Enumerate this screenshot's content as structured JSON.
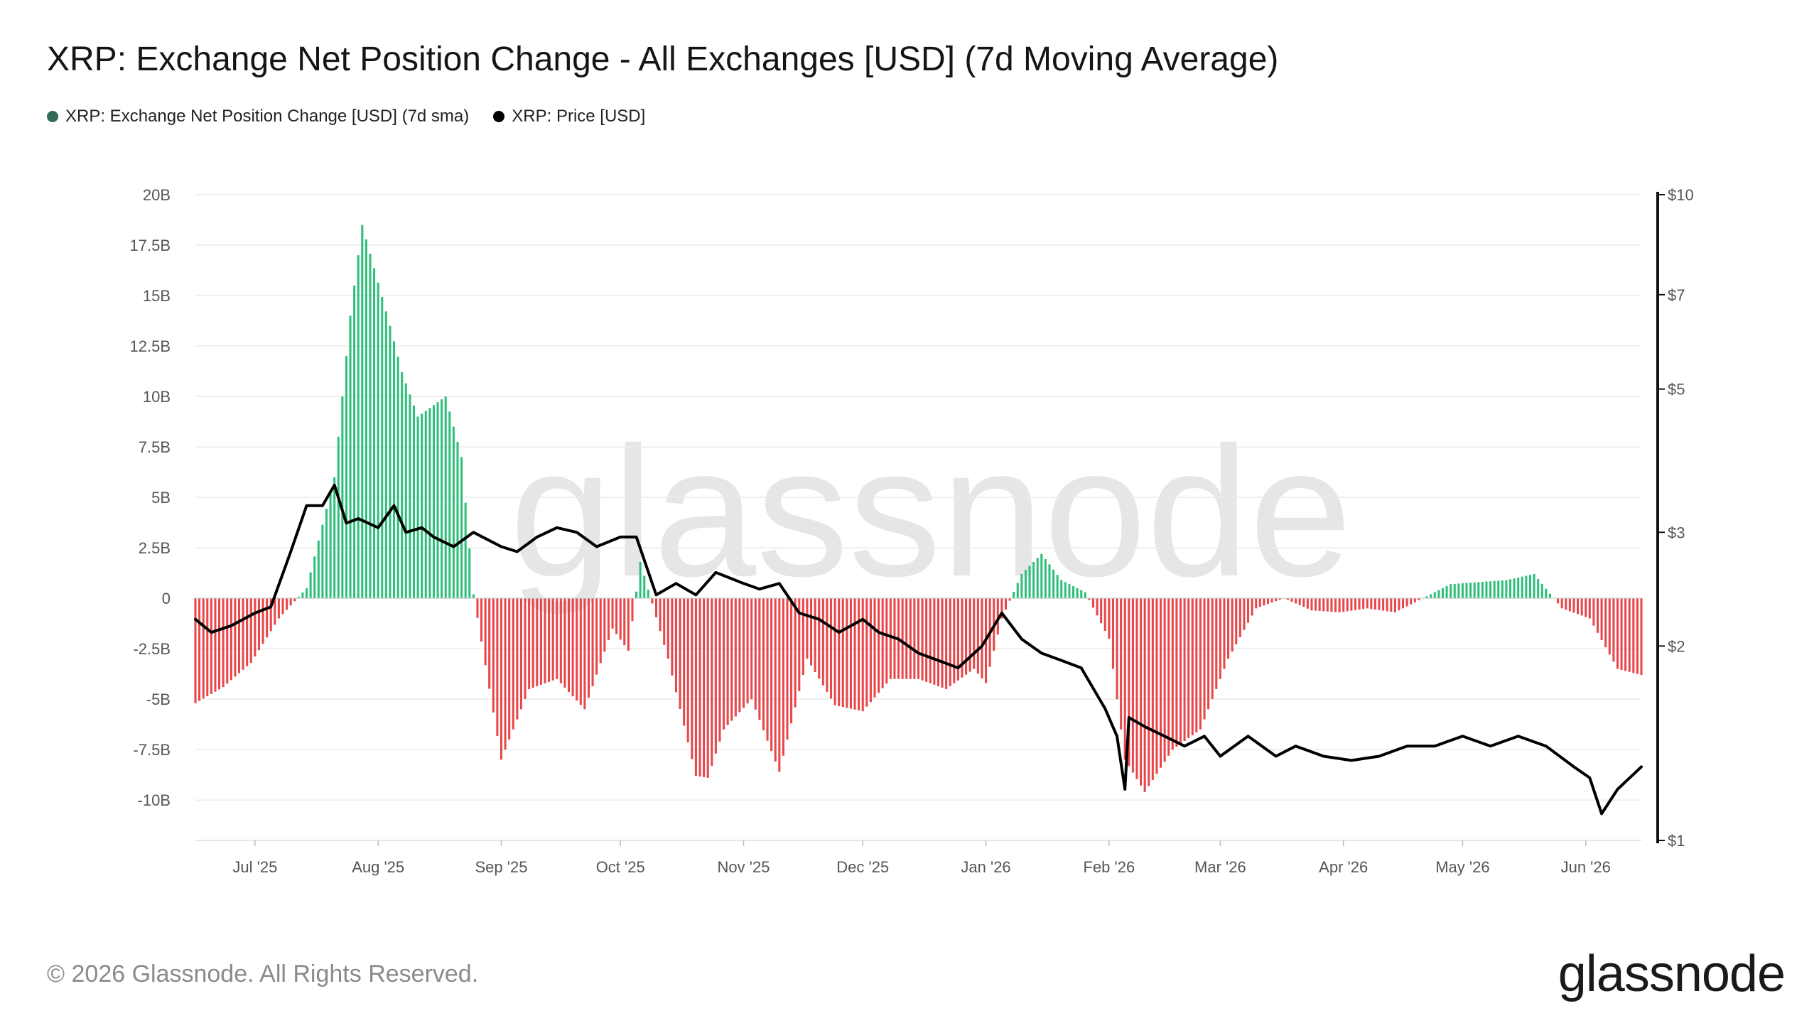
{
  "page": {
    "title": "XRP: Exchange Net Position Change - All Exchanges [USD] (7d Moving Average)",
    "footer": "© 2026 Glassnode. All Rights Reserved.",
    "brand": "glassnode",
    "watermark": "glassnode"
  },
  "chart_data": {
    "type": "bar",
    "title": "XRP: Exchange Net Position Change - All Exchanges [USD] (7d Moving Average)",
    "legend_position": "top-left",
    "grid": true,
    "colors": {
      "positive": "#2fbf7a",
      "negative": "#e8474a",
      "price": "#000000",
      "net_legend": "#2f6b55",
      "grid": "#ebebeb"
    },
    "series": [
      {
        "name": "XRP: Exchange Net Position Change [USD] (7d sma)",
        "kind": "bar",
        "axis": "left"
      },
      {
        "name": "XRP: Price [USD]",
        "kind": "line",
        "axis": "right",
        "scale": "log"
      }
    ],
    "x_ticks": [
      "Jul '25",
      "Aug '25",
      "Sep '25",
      "Oct '25",
      "Nov '25",
      "Dec '25",
      "Jan '26",
      "Feb '26",
      "Mar '26",
      "Apr '26",
      "May '26",
      "Jun '26"
    ],
    "x_range": [
      "2025-06-16",
      "2026-06-15"
    ],
    "y_left": {
      "range": [
        -12000000000,
        20000000000
      ],
      "ticks": [
        20000000000,
        17500000000,
        15000000000,
        12500000000,
        10000000000,
        7500000000,
        5000000000,
        2500000000,
        0,
        -2500000000,
        -5000000000,
        -7500000000,
        -10000000000
      ],
      "tick_labels": [
        "20B",
        "17.5B",
        "15B",
        "12.5B",
        "10B",
        "7.5B",
        "5B",
        "2.5B",
        "0",
        "-2.5B",
        "-5B",
        "-7.5B",
        "-10B"
      ]
    },
    "y_right": {
      "range": [
        1,
        10
      ],
      "ticks": [
        10,
        7,
        5,
        3,
        2,
        1
      ],
      "tick_labels": [
        "$10",
        "$7",
        "$5",
        "$3",
        "$2",
        "$1"
      ]
    },
    "net_position": {
      "dates": [
        "2025-06-16",
        "2025-06-23",
        "2025-06-30",
        "2025-07-07",
        "2025-07-14",
        "2025-07-21",
        "2025-07-25",
        "2025-07-28",
        "2025-08-04",
        "2025-08-07",
        "2025-08-11",
        "2025-08-18",
        "2025-08-22",
        "2025-08-25",
        "2025-09-01",
        "2025-09-08",
        "2025-09-15",
        "2025-09-22",
        "2025-09-29",
        "2025-10-03",
        "2025-10-06",
        "2025-10-13",
        "2025-10-20",
        "2025-10-23",
        "2025-10-27",
        "2025-11-03",
        "2025-11-10",
        "2025-11-17",
        "2025-11-24",
        "2025-12-01",
        "2025-12-08",
        "2025-12-15",
        "2025-12-22",
        "2025-12-29",
        "2026-01-01",
        "2026-01-05",
        "2026-01-10",
        "2026-01-15",
        "2026-01-20",
        "2026-01-26",
        "2026-02-01",
        "2026-02-05",
        "2026-02-10",
        "2026-02-17",
        "2026-02-24",
        "2026-03-03",
        "2026-03-10",
        "2026-03-17",
        "2026-03-24",
        "2026-03-31",
        "2026-04-07",
        "2026-04-14",
        "2026-04-21",
        "2026-04-28",
        "2026-05-05",
        "2026-05-12",
        "2026-05-19",
        "2026-05-26",
        "2026-06-02",
        "2026-06-09",
        "2026-06-15"
      ],
      "values": [
        -5200000000,
        -4400000000,
        -3200000000,
        -1000000000,
        500000000,
        6000000000,
        14000000000,
        18500000000,
        13500000000,
        11200000000,
        9000000000,
        10000000000,
        7000000000,
        200000000,
        -8000000000,
        -4500000000,
        -4000000000,
        -5500000000,
        -1500000000,
        -2600000000,
        1800000000,
        -3000000000,
        -8800000000,
        -8900000000,
        -6500000000,
        -5000000000,
        -8600000000,
        -3000000000,
        -5300000000,
        -5600000000,
        -4000000000,
        -4000000000,
        -4500000000,
        -3500000000,
        -4200000000,
        -1000000000,
        1200000000,
        2200000000,
        900000000,
        300000000,
        -2000000000,
        -8000000000,
        -9600000000,
        -7500000000,
        -6500000000,
        -3000000000,
        -500000000,
        0,
        -600000000,
        -700000000,
        -500000000,
        -700000000,
        0,
        700000000,
        800000000,
        900000000,
        1200000000,
        -500000000,
        -1000000000,
        -3500000000,
        -3800000000
      ]
    },
    "price": {
      "dates": [
        "2025-06-16",
        "2025-06-20",
        "2025-06-25",
        "2025-07-01",
        "2025-07-05",
        "2025-07-10",
        "2025-07-14",
        "2025-07-18",
        "2025-07-21",
        "2025-07-24",
        "2025-07-27",
        "2025-08-01",
        "2025-08-05",
        "2025-08-08",
        "2025-08-12",
        "2025-08-15",
        "2025-08-20",
        "2025-08-25",
        "2025-09-01",
        "2025-09-05",
        "2025-09-10",
        "2025-09-15",
        "2025-09-20",
        "2025-09-25",
        "2025-10-01",
        "2025-10-05",
        "2025-10-10",
        "2025-10-15",
        "2025-10-20",
        "2025-10-25",
        "2025-11-01",
        "2025-11-05",
        "2025-11-10",
        "2025-11-15",
        "2025-11-20",
        "2025-11-25",
        "2025-12-01",
        "2025-12-05",
        "2025-12-10",
        "2025-12-15",
        "2025-12-20",
        "2025-12-25",
        "2025-12-31",
        "2026-01-05",
        "2026-01-10",
        "2026-01-15",
        "2026-01-20",
        "2026-01-25",
        "2026-01-31",
        "2026-02-03",
        "2026-02-05",
        "2026-02-06",
        "2026-02-10",
        "2026-02-15",
        "2026-02-20",
        "2026-02-25",
        "2026-03-01",
        "2026-03-08",
        "2026-03-15",
        "2026-03-20",
        "2026-03-27",
        "2026-04-03",
        "2026-04-10",
        "2026-04-17",
        "2026-04-24",
        "2026-05-01",
        "2026-05-08",
        "2026-05-15",
        "2026-05-22",
        "2026-05-29",
        "2026-06-02",
        "2026-06-05",
        "2026-06-09",
        "2026-06-15"
      ],
      "values": [
        2.2,
        2.1,
        2.15,
        2.25,
        2.3,
        2.8,
        3.3,
        3.3,
        3.55,
        3.1,
        3.15,
        3.05,
        3.3,
        3.0,
        3.05,
        2.95,
        2.85,
        3.0,
        2.85,
        2.8,
        2.95,
        3.05,
        3.0,
        2.85,
        2.95,
        2.95,
        2.4,
        2.5,
        2.4,
        2.6,
        2.5,
        2.45,
        2.5,
        2.25,
        2.2,
        2.1,
        2.2,
        2.1,
        2.05,
        1.95,
        1.9,
        1.85,
        2.0,
        2.25,
        2.05,
        1.95,
        1.9,
        1.85,
        1.6,
        1.45,
        1.2,
        1.55,
        1.5,
        1.45,
        1.4,
        1.45,
        1.35,
        1.45,
        1.35,
        1.4,
        1.35,
        1.33,
        1.35,
        1.4,
        1.4,
        1.45,
        1.4,
        1.45,
        1.4,
        1.3,
        1.25,
        1.1,
        1.2,
        1.3
      ]
    }
  }
}
